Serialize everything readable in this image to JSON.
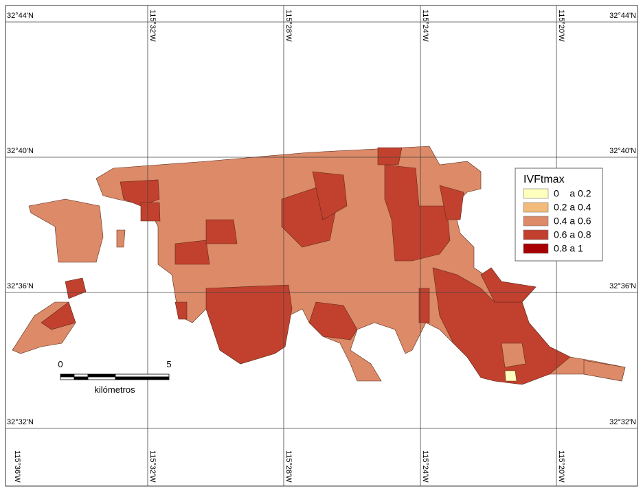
{
  "graticule": {
    "latitudes": [
      "32°44'N",
      "32°40'N",
      "32°36'N",
      "32°32'N"
    ],
    "longitudes_top": [
      "115°32'W",
      "115°28'W",
      "115°24'W",
      "115°20'W"
    ],
    "longitudes_bottom": [
      "115°36'W",
      "115°32'W",
      "115°28'W",
      "115°24'W",
      "115°20'W"
    ]
  },
  "legend": {
    "title": "IVFtmax",
    "items": [
      {
        "label": "0    a 0.2",
        "color": "#ffffbe"
      },
      {
        "label": "0.2 a 0.4",
        "color": "#f2bb7c"
      },
      {
        "label": "0.4 a 0.6",
        "color": "#dc8a68"
      },
      {
        "label": "0.6 a 0.8",
        "color": "#c2402e"
      },
      {
        "label": "0.8 a 1",
        "color": "#a80000"
      }
    ]
  },
  "scale_bar": {
    "ticks": [
      "0",
      "5"
    ],
    "unit": "kilómetros"
  }
}
